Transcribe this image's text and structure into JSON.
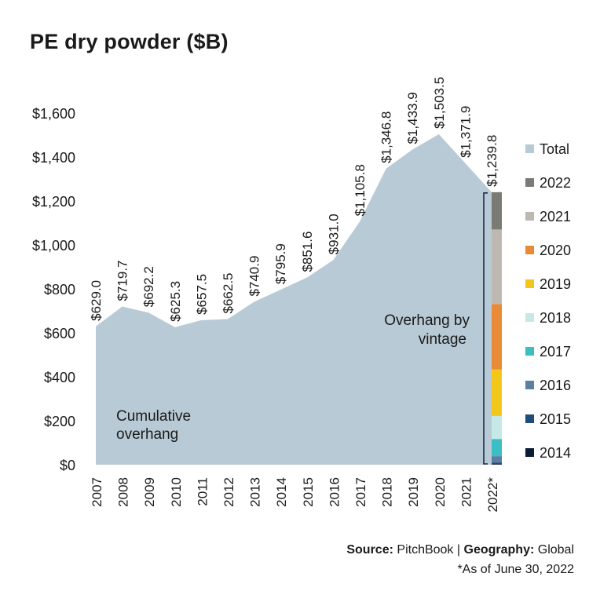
{
  "title": "PE dry powder ($B)",
  "source": {
    "source_label": "Source:",
    "source_value": "PitchBook",
    "separator": "|",
    "geo_label": "Geography:",
    "geo_value": "Global",
    "note": "*As of June 30, 2022"
  },
  "chart_data": {
    "type": "area",
    "title": "PE dry powder ($B)",
    "categories": [
      "2007",
      "2008",
      "2009",
      "2010",
      "2011",
      "2012",
      "2013",
      "2014",
      "2015",
      "2016",
      "2017",
      "2018",
      "2019",
      "2020",
      "2021",
      "2022*"
    ],
    "series": [
      {
        "name": "Total",
        "values": [
          629.0,
          719.7,
          692.2,
          625.3,
          657.5,
          662.5,
          740.9,
          795.9,
          851.6,
          931.0,
          1105.8,
          1346.8,
          1433.9,
          1503.5,
          1371.9,
          1239.8
        ]
      }
    ],
    "data_labels": [
      "$629.0",
      "$719.7",
      "$692.2",
      "$625.3",
      "$657.5",
      "$662.5",
      "$740.9",
      "$795.9",
      "$851.6",
      "$931.0",
      "$1,105.8",
      "$1,346.8",
      "$1,433.9",
      "$1,503.5",
      "$1,371.9",
      "$1,239.8"
    ],
    "yticks": [
      0,
      200,
      400,
      600,
      800,
      1000,
      1200,
      1400,
      1600
    ],
    "ytick_labels": [
      "$0",
      "$200",
      "$400",
      "$600",
      "$800",
      "$1,000",
      "$1,200",
      "$1,400",
      "$1,600"
    ],
    "ylim": [
      0,
      1600
    ],
    "stack_2022_by_vintage": [
      {
        "vintage": "2014",
        "value": 3
      },
      {
        "vintage": "2015",
        "value": 6
      },
      {
        "vintage": "2016",
        "value": 30
      },
      {
        "vintage": "2017",
        "value": 78
      },
      {
        "vintage": "2018",
        "value": 105
      },
      {
        "vintage": "2019",
        "value": 212
      },
      {
        "vintage": "2020",
        "value": 297
      },
      {
        "vintage": "2021",
        "value": 339
      },
      {
        "vintage": "2022",
        "value": 170
      }
    ],
    "annotations": [
      "Cumulative",
      "overhang",
      "Overhang by",
      "vintage"
    ],
    "legend": [
      {
        "label": "Total",
        "color": "#b8cad6"
      },
      {
        "label": "2022",
        "color": "#797b74"
      },
      {
        "label": "2021",
        "color": "#bdb9b1"
      },
      {
        "label": "2020",
        "color": "#e98a37"
      },
      {
        "label": "2019",
        "color": "#f2c71a"
      },
      {
        "label": "2018",
        "color": "#c6e8e6"
      },
      {
        "label": "2017",
        "color": "#3cbfc4"
      },
      {
        "label": "2016",
        "color": "#5b7fa3"
      },
      {
        "label": "2015",
        "color": "#1e4d7c"
      },
      {
        "label": "2014",
        "color": "#0c1a33"
      }
    ],
    "legend_position": "right",
    "grid": false,
    "area_color": "#b8cad6"
  }
}
